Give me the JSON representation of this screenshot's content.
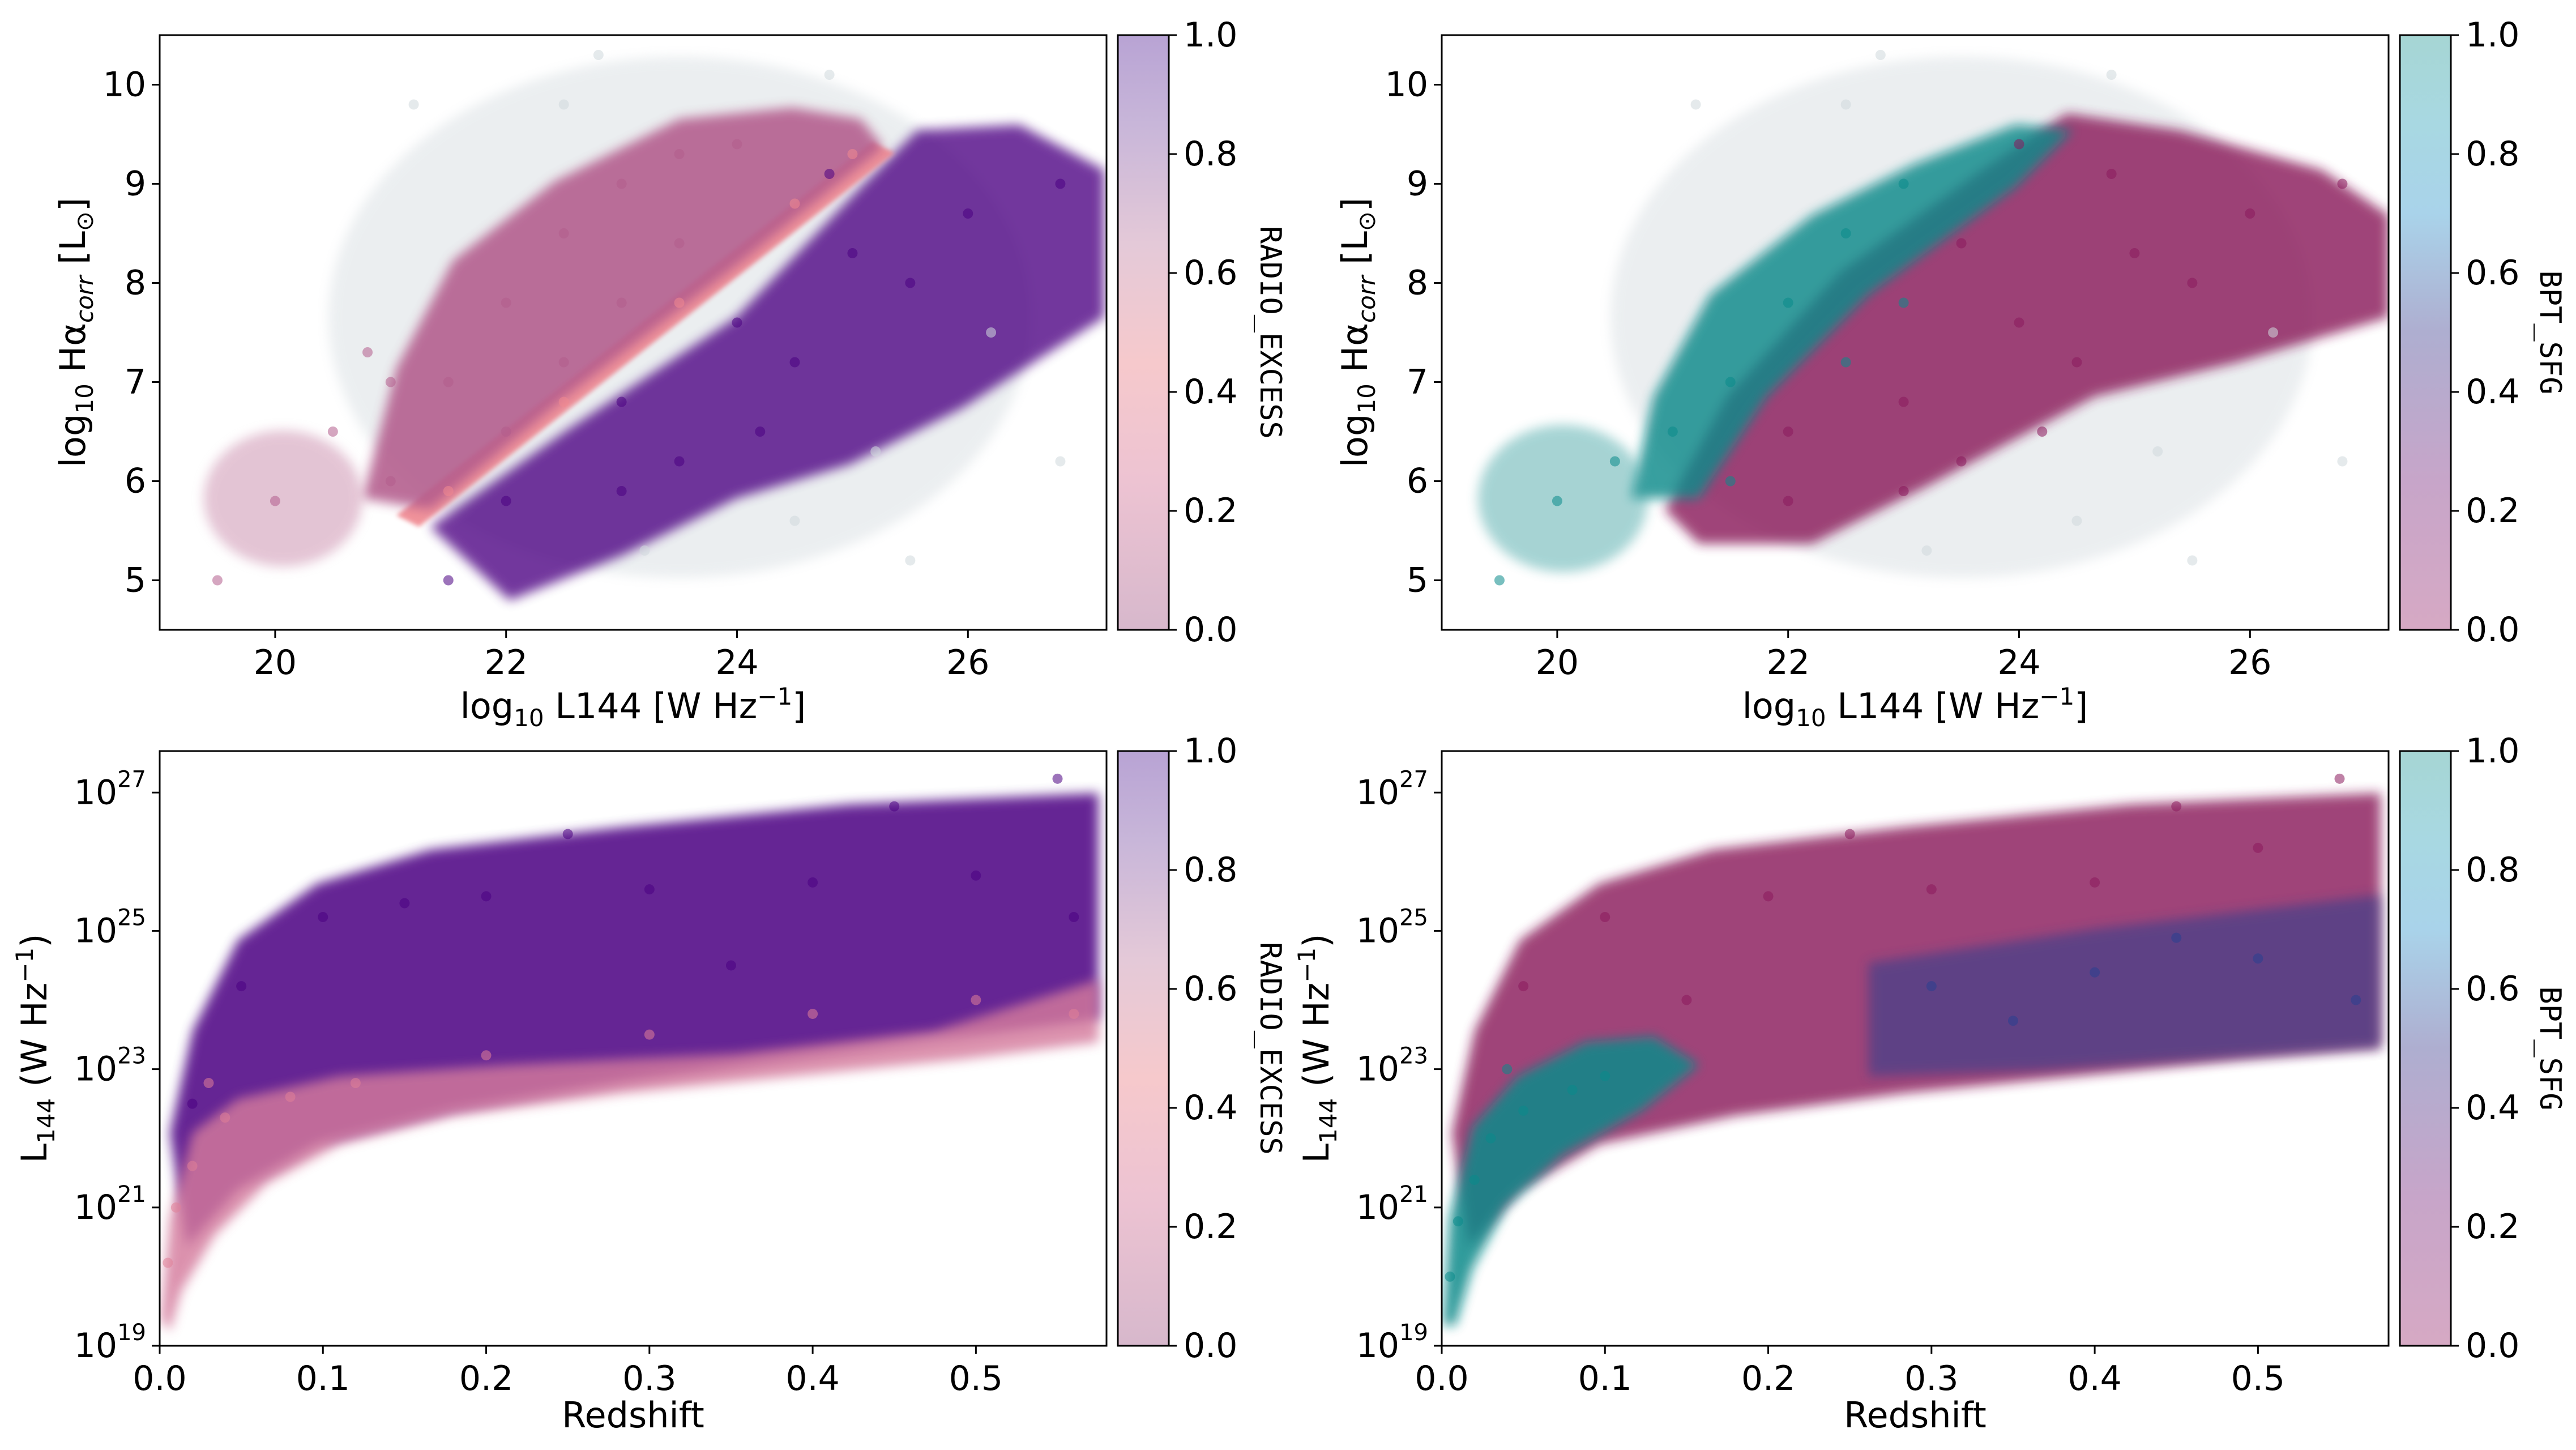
{
  "figure": {
    "panels": [
      {
        "id": "top-left",
        "xlabel_base": "log",
        "xlabel_sub": "10",
        "xlabel_rest": " L144 [W Hz",
        "xlabel_sup": "−1",
        "xlabel_end": "]",
        "ylabel_base": "log",
        "ylabel_sub": "10",
        "ylabel_mid": " Hα",
        "ylabel_sub2": "corr",
        "ylabel_end": " [L",
        "ylabel_sub3": "⊙",
        "ylabel_close": "]",
        "colorbar_label": "RADIO_EXCESS",
        "colorbar_ticks": [
          "0.0",
          "0.2",
          "0.4",
          "0.6",
          "0.8",
          "1.0"
        ],
        "colormap": [
          "#d7b8cc",
          "#f0c8d4",
          "#f5c9cc",
          "#e0c8d8",
          "#c6b3d8",
          "#b8a3d4"
        ]
      },
      {
        "id": "top-right",
        "xlabel_base": "log",
        "xlabel_sub": "10",
        "xlabel_rest": " L144 [W Hz",
        "xlabel_sup": "−1",
        "xlabel_end": "]",
        "ylabel_base": "log",
        "ylabel_sub": "10",
        "ylabel_mid": " Hα",
        "ylabel_sub2": "corr",
        "ylabel_end": " [L",
        "ylabel_sub3": "⊙",
        "ylabel_close": "]",
        "colorbar_label": "BPT_SFG",
        "colorbar_ticks": [
          "0.0",
          "0.2",
          "0.4",
          "0.6",
          "0.8",
          "1.0"
        ],
        "colormap": [
          "#d6a9c4",
          "#c7a5c9",
          "#aeaed0",
          "#a9d0e6",
          "#a6d8e0",
          "#a6d6d4"
        ]
      },
      {
        "id": "bottom-left",
        "xlabel": "Redshift",
        "ylabel_base": "L",
        "ylabel_sub": "144",
        "ylabel_rest": " (W Hz",
        "ylabel_sup": "−1",
        "ylabel_end": ")",
        "colorbar_label": "RADIO_EXCESS",
        "colorbar_ticks": [
          "0.0",
          "0.2",
          "0.4",
          "0.6",
          "0.8",
          "1.0"
        ],
        "colormap": [
          "#d7b8cc",
          "#f0c8d4",
          "#f5c9cc",
          "#e0c8d8",
          "#c6b3d8",
          "#b8a3d4"
        ]
      },
      {
        "id": "bottom-right",
        "xlabel": "Redshift",
        "ylabel_base": "L",
        "ylabel_sub": "144",
        "ylabel_rest": " (W Hz",
        "ylabel_sup": "−1",
        "ylabel_end": ")",
        "colorbar_label": "BPT_SFG",
        "colorbar_ticks": [
          "0.0",
          "0.2",
          "0.4",
          "0.6",
          "0.8",
          "1.0"
        ],
        "colormap": [
          "#d6a9c4",
          "#c7a5c9",
          "#aeaed0",
          "#a9d0e6",
          "#a6d8e0",
          "#a6d6d4"
        ]
      }
    ]
  },
  "chart_data": [
    {
      "type": "scatter",
      "panel": "top-left",
      "xlim": [
        19,
        27.2
      ],
      "ylim": [
        4.5,
        10.5
      ],
      "xticks": [
        20,
        22,
        24,
        26
      ],
      "yticks": [
        5,
        6,
        7,
        8,
        9,
        10
      ],
      "series": [
        {
          "color": "#d0d8dc",
          "points": [
            [
              22.5,
              9.8
            ],
            [
              24.5,
              5.6
            ],
            [
              25.2,
              6.3
            ],
            [
              23.2,
              5.3
            ],
            [
              26.2,
              7.5
            ],
            [
              21.2,
              9.8
            ],
            [
              24.8,
              10.1
            ],
            [
              25.5,
              5.2
            ],
            [
              22.8,
              10.3
            ],
            [
              26.8,
              6.2
            ]
          ]
        },
        {
          "color": "#4b0082",
          "points": [
            [
              23,
              6.8
            ],
            [
              24,
              7.6
            ],
            [
              25,
              8.3
            ],
            [
              24.5,
              7.2
            ],
            [
              23.5,
              6.2
            ],
            [
              22,
              5.8
            ],
            [
              26,
              8.7
            ],
            [
              26.8,
              9.0
            ],
            [
              25.5,
              8.0
            ],
            [
              24.2,
              6.5
            ],
            [
              23,
              5.9
            ],
            [
              24.8,
              9.1
            ],
            [
              21.5,
              5.0
            ]
          ]
        },
        {
          "color": "#f08890",
          "points": [
            [
              21.5,
              5.9
            ],
            [
              22.5,
              6.8
            ],
            [
              23.5,
              7.8
            ],
            [
              24.5,
              8.8
            ],
            [
              25,
              9.3
            ]
          ]
        },
        {
          "color": "#b35c8c",
          "points": [
            [
              21.5,
              7.0
            ],
            [
              22,
              7.8
            ],
            [
              22.5,
              8.5
            ],
            [
              23,
              9.0
            ],
            [
              23.5,
              9.3
            ],
            [
              24,
              9.4
            ],
            [
              22,
              6.5
            ],
            [
              21,
              7.0
            ],
            [
              20.8,
              7.3
            ],
            [
              22.5,
              7.2
            ],
            [
              23,
              7.8
            ],
            [
              23.5,
              8.4
            ],
            [
              20,
              5.8
            ],
            [
              19.5,
              5.0
            ],
            [
              20.5,
              6.5
            ],
            [
              21,
              6.0
            ]
          ]
        }
      ]
    },
    {
      "type": "scatter",
      "panel": "top-right",
      "xlim": [
        19,
        27.2
      ],
      "ylim": [
        4.5,
        10.5
      ],
      "xticks": [
        20,
        22,
        24,
        26
      ],
      "yticks": [
        5,
        6,
        7,
        8,
        9,
        10
      ],
      "series": [
        {
          "color": "#d0d8dc",
          "points": [
            [
              22.5,
              9.8
            ],
            [
              24.5,
              5.6
            ],
            [
              25.2,
              6.3
            ],
            [
              23.2,
              5.3
            ],
            [
              26.2,
              7.5
            ],
            [
              21.2,
              9.8
            ],
            [
              24.8,
              10.1
            ],
            [
              25.5,
              5.2
            ],
            [
              22.8,
              10.3
            ],
            [
              26.8,
              6.2
            ]
          ]
        },
        {
          "color": "#8b1a5c",
          "points": [
            [
              23,
              6.8
            ],
            [
              24,
              7.6
            ],
            [
              25,
              8.3
            ],
            [
              24.5,
              7.2
            ],
            [
              23.5,
              6.2
            ],
            [
              22,
              5.8
            ],
            [
              26,
              8.7
            ],
            [
              26.8,
              9.0
            ],
            [
              25.5,
              8.0
            ],
            [
              24.2,
              6.5
            ],
            [
              23,
              5.9
            ],
            [
              24.8,
              9.1
            ],
            [
              23.5,
              8.4
            ],
            [
              24,
              9.4
            ],
            [
              22,
              6.5
            ]
          ]
        },
        {
          "color": "#0a8a8a",
          "points": [
            [
              21.5,
              7.0
            ],
            [
              22,
              7.8
            ],
            [
              22.5,
              8.5
            ],
            [
              23,
              9.0
            ],
            [
              21,
              6.5
            ],
            [
              20.5,
              6.2
            ],
            [
              20,
              5.8
            ],
            [
              19.5,
              5.0
            ],
            [
              21.5,
              6.0
            ],
            [
              22.5,
              7.2
            ],
            [
              23,
              7.8
            ]
          ]
        }
      ]
    },
    {
      "type": "scatter",
      "panel": "bottom-left",
      "yscale": "log",
      "xlim": [
        0,
        0.58
      ],
      "ylim": [
        19,
        27.6
      ],
      "xticks": [
        0.0,
        0.1,
        0.2,
        0.3,
        0.4,
        0.5
      ],
      "yticks": [
        19,
        21,
        23,
        25,
        27
      ],
      "series": [
        {
          "color": "#4b0082",
          "points": [
            [
              0.02,
              22.5
            ],
            [
              0.05,
              24.2
            ],
            [
              0.1,
              25.2
            ],
            [
              0.15,
              25.4
            ],
            [
              0.2,
              25.5
            ],
            [
              0.3,
              25.6
            ],
            [
              0.4,
              25.7
            ],
            [
              0.5,
              25.8
            ],
            [
              0.56,
              25.2
            ],
            [
              0.25,
              26.4
            ],
            [
              0.45,
              26.8
            ],
            [
              0.35,
              24.5
            ],
            [
              0.55,
              27.2
            ]
          ]
        },
        {
          "color": "#e08098",
          "points": [
            [
              0.005,
              20.2
            ],
            [
              0.01,
              21.0
            ],
            [
              0.02,
              21.6
            ],
            [
              0.04,
              22.3
            ],
            [
              0.08,
              22.6
            ],
            [
              0.12,
              22.8
            ],
            [
              0.2,
              23.2
            ],
            [
              0.3,
              23.5
            ],
            [
              0.4,
              23.8
            ],
            [
              0.5,
              24.0
            ],
            [
              0.56,
              23.8
            ],
            [
              0.03,
              22.8
            ]
          ]
        }
      ]
    },
    {
      "type": "scatter",
      "panel": "bottom-right",
      "yscale": "log",
      "xlim": [
        0,
        0.58
      ],
      "ylim": [
        19,
        27.6
      ],
      "xticks": [
        0.0,
        0.1,
        0.2,
        0.3,
        0.4,
        0.5
      ],
      "yticks": [
        19,
        21,
        23,
        25,
        27
      ],
      "series": [
        {
          "color": "#8b1a5c",
          "points": [
            [
              0.05,
              24.2
            ],
            [
              0.1,
              25.2
            ],
            [
              0.2,
              25.5
            ],
            [
              0.3,
              25.6
            ],
            [
              0.4,
              25.7
            ],
            [
              0.5,
              26.2
            ],
            [
              0.25,
              26.4
            ],
            [
              0.45,
              26.8
            ],
            [
              0.55,
              27.2
            ],
            [
              0.15,
              24.0
            ]
          ]
        },
        {
          "color": "#2a3f8f",
          "points": [
            [
              0.3,
              24.2
            ],
            [
              0.4,
              24.4
            ],
            [
              0.5,
              24.6
            ],
            [
              0.56,
              24.0
            ],
            [
              0.35,
              23.7
            ],
            [
              0.45,
              24.9
            ]
          ]
        },
        {
          "color": "#0a8a8a",
          "points": [
            [
              0.005,
              20.0
            ],
            [
              0.01,
              20.8
            ],
            [
              0.02,
              21.4
            ],
            [
              0.03,
              22.0
            ],
            [
              0.05,
              22.4
            ],
            [
              0.08,
              22.7
            ],
            [
              0.04,
              23.0
            ],
            [
              0.1,
              22.9
            ]
          ]
        }
      ]
    }
  ]
}
